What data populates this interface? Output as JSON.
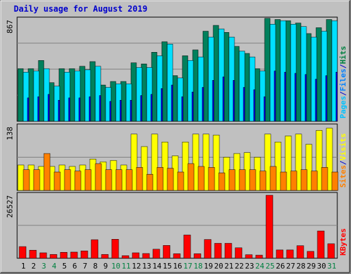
{
  "chart_data": {
    "type": "bar",
    "title": "Daily usage for August 2019",
    "categories": [
      "1",
      "2",
      "3",
      "4",
      "5",
      "6",
      "7",
      "8",
      "9",
      "10",
      "11",
      "12",
      "13",
      "14",
      "15",
      "16",
      "17",
      "18",
      "19",
      "20",
      "21",
      "22",
      "23",
      "24",
      "25",
      "26",
      "27",
      "28",
      "29",
      "30",
      "31"
    ],
    "weekend_days": [
      "3",
      "4",
      "10",
      "11",
      "17",
      "18",
      "24",
      "25",
      "31"
    ],
    "panels": [
      {
        "id": "hits_files_pages",
        "max_label": "867",
        "max": 867,
        "legend": [
          {
            "text": "Pages",
            "color": "#00c0ff"
          },
          {
            "text": "/",
            "color": "#0000cc"
          },
          {
            "text": "Files",
            "color": "#0080ff"
          },
          {
            "text": "/",
            "color": "#0000cc"
          },
          {
            "text": "Hits",
            "color": "#008040"
          }
        ],
        "series": [
          {
            "name": "Hits",
            "color": "#00805c",
            "values": [
              450,
              450,
              520,
              330,
              450,
              450,
              470,
              510,
              310,
              340,
              340,
              500,
              490,
              590,
              680,
              390,
              560,
              610,
              770,
              820,
              760,
              640,
              580,
              450,
              880,
              870,
              860,
              840,
              750,
              800,
              870
            ]
          },
          {
            "name": "Files",
            "color": "#00e0ff",
            "values": [
              420,
              430,
              450,
              300,
              420,
              430,
              440,
              470,
              290,
              320,
              320,
              460,
              460,
              560,
              660,
              370,
              520,
              550,
              720,
              790,
              720,
              600,
              550,
              430,
              830,
              860,
              830,
              810,
              720,
              770,
              860
            ]
          },
          {
            "name": "Pages",
            "color": "#0000ff",
            "values": [
              200,
              210,
              230,
              180,
              200,
              200,
              210,
              220,
              170,
              180,
              180,
              220,
              230,
              280,
              310,
              210,
              250,
              290,
              350,
              380,
              350,
              290,
              270,
              210,
              430,
              420,
              410,
              400,
              360,
              390,
              420
            ]
          }
        ]
      },
      {
        "id": "visits_sites",
        "max_label": "138",
        "max": 138,
        "legend": [
          {
            "text": "Sites",
            "color": "#ff8000"
          },
          {
            "text": "/",
            "color": "#0000cc"
          },
          {
            "text": "Visits",
            "color": "#ffff00"
          }
        ],
        "series": [
          {
            "name": "Visits",
            "color": "#ffff00",
            "values": [
              55,
              55,
              52,
              52,
              55,
              52,
              55,
              68,
              62,
              65,
              55,
              122,
              95,
              122,
              105,
              75,
              105,
              122,
              122,
              120,
              72,
              80,
              82,
              72,
              122,
              105,
              118,
              122,
              100,
              130,
              135
            ]
          },
          {
            "name": "Sites",
            "color": "#ff8000",
            "values": [
              45,
              45,
              80,
              40,
              45,
              42,
              45,
              58,
              45,
              45,
              45,
              50,
              35,
              50,
              48,
              40,
              58,
              52,
              50,
              38,
              45,
              45,
              45,
              42,
              52,
              40,
              42,
              45,
              42,
              50,
              40
            ]
          }
        ]
      },
      {
        "id": "kbytes",
        "max_label": "26527",
        "max": 26527,
        "legend": [
          {
            "text": "KBytes",
            "color": "#ff0000"
          }
        ],
        "series": [
          {
            "name": "KBytes",
            "color": "#ff0000",
            "values": [
              4900,
              3400,
              2300,
              1600,
              2500,
              2600,
              3100,
              7800,
              1600,
              8000,
              1100,
              2300,
              2000,
              3800,
              5400,
              1900,
              9800,
              1900,
              7900,
              6300,
              6300,
              4400,
              1500,
              1300,
              26527,
              3500,
              3500,
              5300,
              2900,
              11500,
              6100
            ]
          }
        ]
      }
    ]
  }
}
